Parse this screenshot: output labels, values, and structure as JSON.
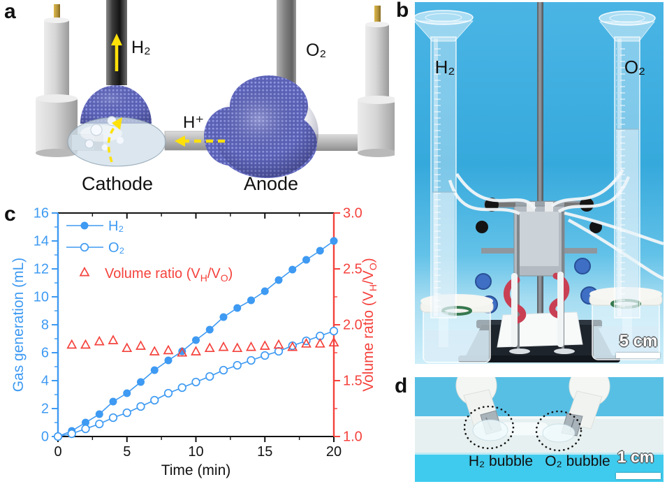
{
  "panels": {
    "a": {
      "letter": "a",
      "h2": "H₂",
      "o2": "O₂",
      "h_plus": "H⁺",
      "cathode": "Cathode",
      "anode": "Anode"
    },
    "b": {
      "letter": "b",
      "h2": "H₂",
      "o2": "O₂",
      "scale_bar": "5 cm"
    },
    "c": {
      "letter": "c"
    },
    "d": {
      "letter": "d",
      "h2_bubble": "H₂ bubble",
      "o2_bubble": "O₂ bubble",
      "scale_bar": "1 cm"
    }
  },
  "colors": {
    "blue": "#3e9af2",
    "red": "#f4423c",
    "panel_photo_bg": "#45b3e2",
    "blob_purple": "#5b62b6"
  },
  "chart_data": {
    "type": "line",
    "x": [
      0,
      1,
      2,
      3,
      4,
      5,
      6,
      7,
      8,
      9,
      10,
      11,
      12,
      13,
      14,
      15,
      16,
      17,
      18,
      19,
      20
    ],
    "series": [
      {
        "name": "H₂",
        "axis": "left",
        "marker": "circle-filled",
        "color": "#3e9af2",
        "values": [
          0,
          0.4,
          1.0,
          1.6,
          2.5,
          3.1,
          3.9,
          4.75,
          5.45,
          6.1,
          6.9,
          7.65,
          8.55,
          9.2,
          9.75,
          10.4,
          11.2,
          11.95,
          12.65,
          13.3,
          14.0
        ]
      },
      {
        "name": "O₂",
        "axis": "left",
        "marker": "circle-open",
        "color": "#3e9af2",
        "values": [
          0,
          0.2,
          0.55,
          0.9,
          1.35,
          1.7,
          2.15,
          2.6,
          3.1,
          3.5,
          3.9,
          4.3,
          4.75,
          5.1,
          5.45,
          5.8,
          6.1,
          6.5,
          6.85,
          7.2,
          7.55
        ]
      },
      {
        "name": "Volume ratio (VH/VO)",
        "name_parts": [
          [
            "t",
            "Volume ratio (V"
          ],
          [
            "s",
            "H"
          ],
          [
            "t",
            "/V"
          ],
          [
            "s",
            "O"
          ],
          [
            "t",
            ")"
          ]
        ],
        "axis": "right",
        "marker": "triangle-open",
        "color": "#f4423c",
        "line": false,
        "x": [
          1,
          2,
          3,
          4,
          5,
          6,
          7,
          8,
          9,
          10,
          11,
          12,
          13,
          14,
          15,
          16,
          17,
          18,
          19,
          20
        ],
        "values": [
          1.82,
          1.82,
          1.85,
          1.86,
          1.79,
          1.81,
          1.76,
          1.77,
          1.75,
          1.76,
          1.79,
          1.8,
          1.79,
          1.8,
          1.81,
          1.82,
          1.8,
          1.83,
          1.83,
          1.84
        ]
      }
    ],
    "xlabel": "Time (min)",
    "ylabel_left": "Gas generation (mL)",
    "ylabel_right_parts": [
      [
        "t",
        "Volume ratio (V"
      ],
      [
        "s",
        "H"
      ],
      [
        "t",
        "/V"
      ],
      [
        "s",
        "O"
      ],
      [
        "t",
        ")"
      ]
    ],
    "xlim": [
      0,
      20
    ],
    "ylim_left": [
      0,
      16
    ],
    "ylim_right": [
      1.0,
      3.0
    ],
    "xticks": [
      0,
      5,
      10,
      15,
      20
    ],
    "xminor": [
      2.5,
      7.5,
      12.5,
      17.5
    ],
    "yticks_left": [
      0,
      2,
      4,
      6,
      8,
      10,
      12,
      14,
      16
    ],
    "yminor_left": [
      1,
      3,
      5,
      7,
      9,
      11,
      13,
      15
    ],
    "yticks_right": [
      "1.0",
      "1.5",
      "2.0",
      "2.5",
      "3.0"
    ],
    "yminor_right": [
      1.25,
      1.75,
      2.25,
      2.75
    ],
    "grid": false,
    "legend_position": "upper-left",
    "axis_colors": {
      "left": "#3e9af2",
      "bottom": "#111111",
      "right": "#f4423c"
    }
  }
}
